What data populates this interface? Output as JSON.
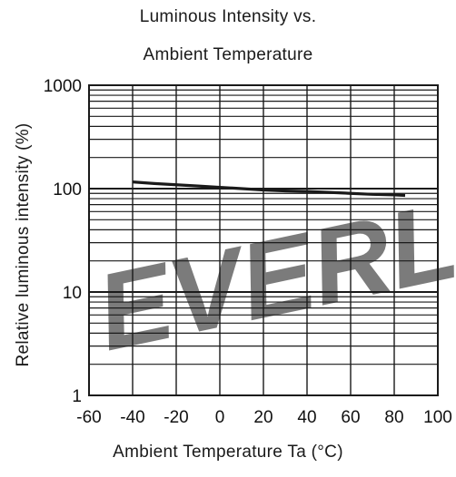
{
  "chart_data": {
    "type": "line",
    "title_lines": [
      "Luminous Intensity vs.",
      "Ambient Temperature"
    ],
    "xlabel": "Ambient Temperature Ta (°C)",
    "ylabel": "Relative luminous intensity (%)",
    "x_ticks": [
      -60,
      -40,
      -20,
      0,
      20,
      40,
      60,
      80,
      100
    ],
    "x_tick_labels": [
      "-60",
      "-40",
      "-20",
      "0",
      "20",
      "40",
      "60",
      "80",
      "100"
    ],
    "y_ticks": [
      1,
      10,
      100,
      1000
    ],
    "y_tick_labels": [
      "1",
      "10",
      "100",
      "1000"
    ],
    "xlim": [
      -60,
      100
    ],
    "ylim": [
      1,
      1000
    ],
    "y_scale": "log",
    "grid": true,
    "series": [
      {
        "x": [
          -40,
          -30,
          -20,
          -10,
          0,
          10,
          20,
          30,
          40,
          50,
          60,
          70,
          80,
          85
        ],
        "y": [
          116,
          112,
          109,
          106,
          103,
          100,
          97,
          95,
          94,
          92,
          90,
          88,
          87,
          86
        ]
      }
    ],
    "colors": {
      "line": "#1a1a1a",
      "grid": "#1a1a1a",
      "watermark": "#dce9f5"
    },
    "watermark": "EVERL"
  }
}
